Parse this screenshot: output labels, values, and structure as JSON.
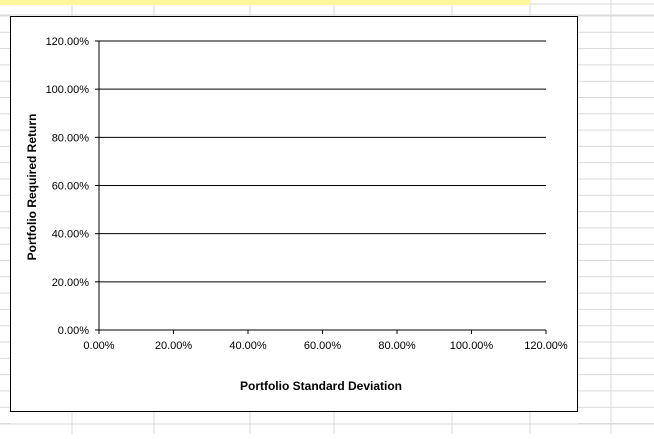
{
  "chart_data": {
    "type": "scatter",
    "title": "",
    "xlabel": "Portfolio  Standard Deviation",
    "ylabel": "Portfolio Required Return",
    "xlim": [
      0,
      1.2
    ],
    "ylim": [
      0,
      1.2
    ],
    "x_ticks": [
      0,
      0.2,
      0.4,
      0.6,
      0.8,
      1.0,
      1.2
    ],
    "y_ticks": [
      0,
      0.2,
      0.4,
      0.6,
      0.8,
      1.0,
      1.2
    ],
    "x_tick_labels": [
      "0.00%",
      "20.00%",
      "40.00%",
      "60.00%",
      "80.00%",
      "100.00%",
      "120.00%"
    ],
    "y_tick_labels": [
      "0.00%",
      "20.00%",
      "40.00%",
      "60.00%",
      "80.00%",
      "100.00%",
      "120.00%"
    ],
    "grid": "horizontal major",
    "legend": "none",
    "series": []
  },
  "colors": {
    "gridline": "#000000",
    "spreadsheet_grid": "#d9d9d9",
    "selection_highlight": "#fff59d"
  }
}
